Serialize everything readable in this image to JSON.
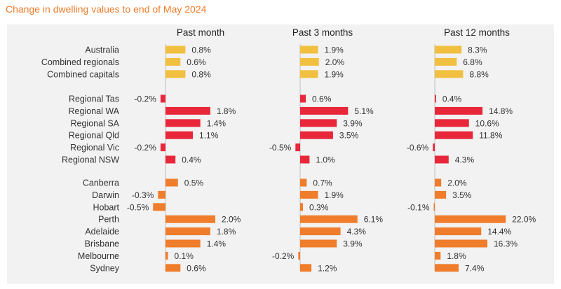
{
  "title": "Change in dwelling values to end of May 2024",
  "colors": {
    "national": "#f2c040",
    "regional": "#e8273b",
    "capital": "#f07d2b",
    "zero_line": "#bfbfbf",
    "text": "#333333",
    "title": "#f07d2b",
    "panel_bg": "#f2f2f2"
  },
  "chart_data": {
    "type": "bar",
    "orientation": "horizontal",
    "columns": [
      "Past month",
      "Past 3 months",
      "Past 12 months"
    ],
    "groups": [
      {
        "id": "national",
        "rows": [
          {
            "label": "Australia",
            "values": [
              "0.8%",
              "1.9%",
              "8.3%"
            ]
          },
          {
            "label": "Combined regionals",
            "values": [
              "0.6%",
              "2.0%",
              "6.8%"
            ]
          },
          {
            "label": "Combined capitals",
            "values": [
              "0.8%",
              "1.9%",
              "8.8%"
            ]
          }
        ]
      },
      {
        "id": "regional",
        "rows": [
          {
            "label": "Regional Tas",
            "values": [
              "-0.2%",
              "0.6%",
              "0.4%"
            ]
          },
          {
            "label": "Regional WA",
            "values": [
              "1.8%",
              "5.1%",
              "14.8%"
            ]
          },
          {
            "label": "Regional SA",
            "values": [
              "1.4%",
              "3.9%",
              "10.6%"
            ]
          },
          {
            "label": "Regional Qld",
            "values": [
              "1.1%",
              "3.5%",
              "11.8%"
            ]
          },
          {
            "label": "Regional Vic",
            "values": [
              "-0.2%",
              "-0.5%",
              "-0.6%"
            ]
          },
          {
            "label": "Regional NSW",
            "values": [
              "0.4%",
              "1.0%",
              "4.3%"
            ]
          }
        ]
      },
      {
        "id": "capital",
        "rows": [
          {
            "label": "Canberra",
            "values": [
              "0.5%",
              "0.7%",
              "2.0%"
            ]
          },
          {
            "label": "Darwin",
            "values": [
              "-0.3%",
              "1.9%",
              "3.5%"
            ]
          },
          {
            "label": "Hobart",
            "values": [
              "-0.5%",
              "0.3%",
              "-0.1%"
            ]
          },
          {
            "label": "Perth",
            "values": [
              "2.0%",
              "6.1%",
              "22.0%"
            ]
          },
          {
            "label": "Adelaide",
            "values": [
              "1.8%",
              "4.3%",
              "14.4%"
            ]
          },
          {
            "label": "Brisbane",
            "values": [
              "1.4%",
              "3.9%",
              "16.3%"
            ]
          },
          {
            "label": "Melbourne",
            "values": [
              "0.1%",
              "-0.2%",
              "1.8%"
            ]
          },
          {
            "label": "Sydney",
            "values": [
              "0.6%",
              "1.2%",
              "7.4%"
            ]
          }
        ]
      }
    ]
  }
}
